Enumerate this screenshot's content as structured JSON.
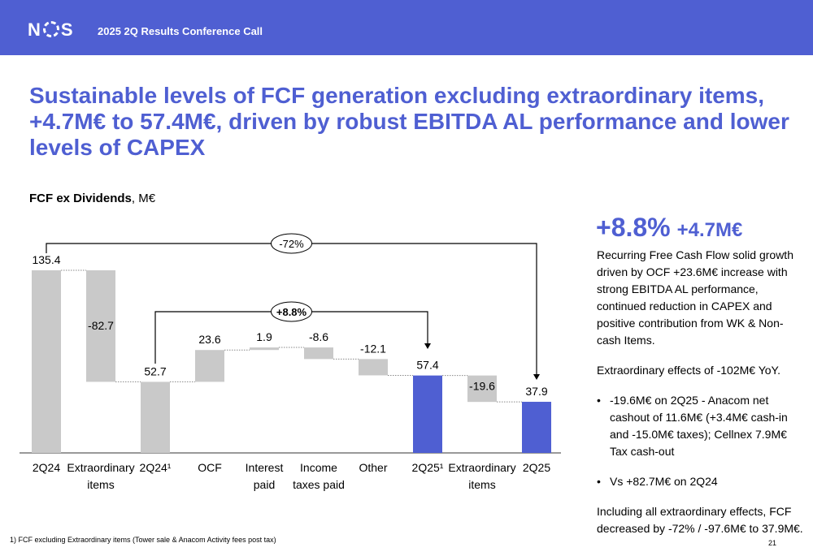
{
  "header": {
    "logo": "NOS",
    "title": "2025 2Q Results Conference Call"
  },
  "title": "Sustainable levels of FCF generation excluding extraordinary items, +4.7M€ to 57.4M€, driven by robust EBITDA AL performance and lower levels of CAPEX",
  "subtitle": {
    "bold": "FCF ex Dividends",
    "rest": ", M€"
  },
  "chart_data": {
    "type": "waterfall",
    "unit": "M€",
    "categories": [
      "2Q24",
      "Extraordinary items",
      "2Q24¹",
      "OCF",
      "Interest paid",
      "Income taxes paid",
      "Other",
      "2Q25¹",
      "Extraordinary items",
      "2Q25"
    ],
    "values": [
      135.4,
      -82.7,
      52.7,
      23.6,
      1.9,
      -8.6,
      -12.1,
      57.4,
      -19.6,
      37.9
    ],
    "labels": [
      "135.4",
      "-82.7",
      "52.7",
      "23.6",
      "1.9",
      "-8.6",
      "-12.1",
      "57.4",
      "-19.6",
      "37.9"
    ],
    "kinds": [
      "total",
      "delta",
      "total",
      "delta",
      "delta",
      "delta",
      "delta",
      "total",
      "delta",
      "total"
    ],
    "highlight": [
      false,
      false,
      false,
      false,
      false,
      false,
      false,
      true,
      false,
      true
    ],
    "colors": {
      "gray": "#c9c9c9",
      "blue": "#4f5fd2"
    },
    "annotations": [
      {
        "text": "-72%",
        "from": "2Q24",
        "to": "2Q25"
      },
      {
        "text": "+8.8%",
        "from": "2Q24¹",
        "to": "2Q25¹"
      }
    ]
  },
  "side": {
    "big1": "+8.8%",
    "big2": "+4.7M€",
    "p1": "Recurring Free Cash Flow solid growth driven by OCF +23.6M€ increase with strong EBITDA AL performance, continued reduction in CAPEX and positive contribution from WK & Non-cash Items.",
    "p2": "Extraordinary effects of -102M€ YoY.",
    "b1": "-19.6M€ on 2Q25 - Anacom net cashout of 11.6M€ (+3.4M€ cash-in and -15.0M€ taxes); Cellnex 7.9M€ Tax cash-out",
    "b2": "Vs +82.7M€ on 2Q24",
    "p3": "Including all extraordinary effects, FCF decreased by -72% / -97.6M€ to 37.9M€."
  },
  "footnote": "1) FCF excluding Extraordinary items (Tower sale & Anacom Activity fees post tax)",
  "page": "21"
}
